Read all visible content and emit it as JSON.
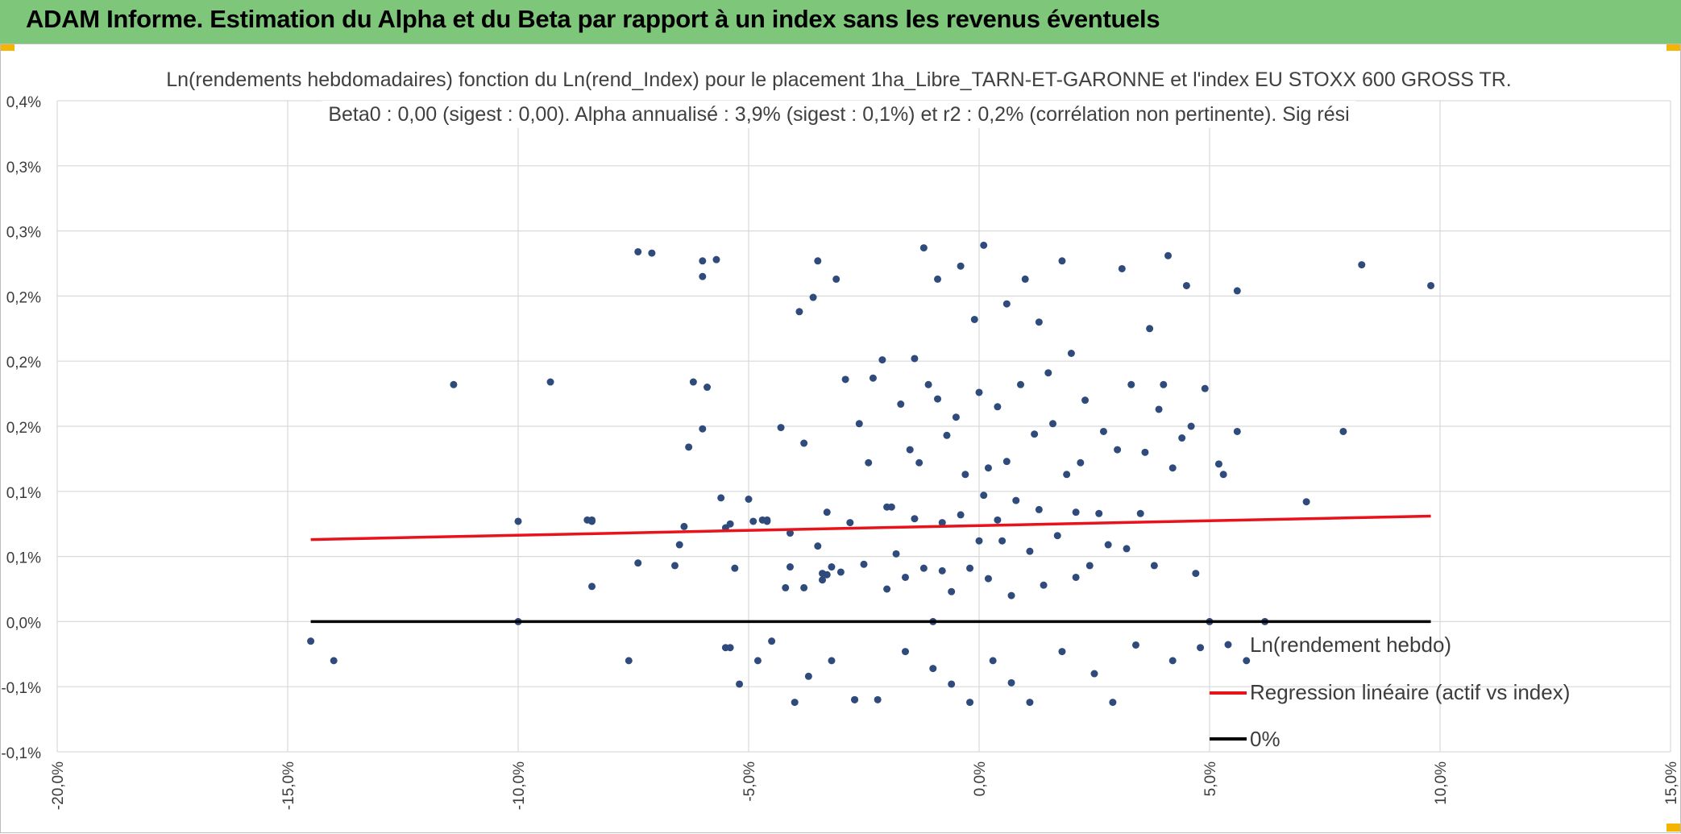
{
  "header": {
    "title": "ADAM Informe. Estimation du Alpha et du Beta par rapport à un index sans les revenus éventuels"
  },
  "colors": {
    "banner": "#7dc67a",
    "points": "#2f4b7c",
    "regression": "#e8121a",
    "zero_line": "#000000",
    "grid": "#d9d9d9"
  },
  "chart_data": {
    "type": "scatter",
    "title_line1": "Ln(rendements hebdomadaires) fonction du Ln(rend_Index) pour le placement 1ha_Libre_TARN-ET-GARONNE et l'index EU STOXX 600 GROSS TR.",
    "title_line2": "Beta0 : 0,00 (sigest : 0,00). Alpha annualisé : 3,9% (sigest : 0,1%) et r2 : 0,2% (corrélation non pertinente). Sig rési",
    "xlim": [
      -0.2,
      0.15
    ],
    "ylim": [
      -0.001,
      0.004
    ],
    "x_ticks": [
      -0.2,
      -0.15,
      -0.1,
      -0.05,
      0.0,
      0.05,
      0.1,
      0.15
    ],
    "x_tick_labels": [
      "-20,0%",
      "-15,0%",
      "-10,0%",
      "-5,0%",
      "0,0%",
      "5,0%",
      "10,0%",
      "15,0%"
    ],
    "y_ticks": [
      -0.001,
      -0.0005,
      0.0,
      0.0005,
      0.001,
      0.0015,
      0.002,
      0.0025,
      0.003,
      0.0035,
      0.004
    ],
    "y_tick_labels": [
      "-0,1%",
      "-0,1%",
      "0,0%",
      "0,1%",
      "0,1%",
      "0,2%",
      "0,2%",
      "0,2%",
      "0,3%",
      "0,3%",
      "0,4%"
    ],
    "regression": {
      "x": [
        -0.145,
        0.098
      ],
      "y": [
        0.00063,
        0.00081
      ]
    },
    "zero_line": {
      "x": [
        -0.145,
        0.098
      ],
      "y": [
        0,
        0
      ]
    },
    "legend": [
      {
        "label": "Ln(rendement hebdo)",
        "kind": "marker"
      },
      {
        "label": "Regression linéaire (actif vs index)",
        "kind": "line-red"
      },
      {
        "label": "0%",
        "kind": "line-black"
      }
    ],
    "series_name": "Ln(rendement hebdo)",
    "points": [
      [
        -0.145,
        -0.00015
      ],
      [
        -0.14,
        -0.0003
      ],
      [
        -0.114,
        0.00182
      ],
      [
        -0.1,
        0.00077
      ],
      [
        -0.1,
        0.0
      ],
      [
        -0.093,
        0.00184
      ],
      [
        -0.085,
        0.00078
      ],
      [
        -0.084,
        0.00077
      ],
      [
        -0.084,
        0.00078
      ],
      [
        -0.084,
        0.00027
      ],
      [
        -0.076,
        -0.0003
      ],
      [
        -0.074,
        0.00284
      ],
      [
        -0.074,
        0.00045
      ],
      [
        -0.071,
        0.00283
      ],
      [
        -0.066,
        0.00043
      ],
      [
        -0.065,
        0.00059
      ],
      [
        -0.064,
        0.00073
      ],
      [
        -0.063,
        0.00134
      ],
      [
        -0.062,
        0.00184
      ],
      [
        -0.06,
        0.00277
      ],
      [
        -0.06,
        0.00265
      ],
      [
        -0.06,
        0.00148
      ],
      [
        -0.059,
        0.0018
      ],
      [
        -0.057,
        0.00278
      ],
      [
        -0.056,
        0.00095
      ],
      [
        -0.055,
        0.00072
      ],
      [
        -0.055,
        -0.0002
      ],
      [
        -0.054,
        0.00075
      ],
      [
        -0.054,
        -0.0002
      ],
      [
        -0.053,
        0.00041
      ],
      [
        -0.052,
        -0.00048
      ],
      [
        -0.05,
        0.00094
      ],
      [
        -0.049,
        0.00077
      ],
      [
        -0.048,
        -0.0003
      ],
      [
        -0.047,
        0.00078
      ],
      [
        -0.046,
        0.00078
      ],
      [
        -0.046,
        0.00077
      ],
      [
        -0.045,
        -0.00015
      ],
      [
        -0.043,
        0.00149
      ],
      [
        -0.042,
        0.00026
      ],
      [
        -0.041,
        0.00042
      ],
      [
        -0.041,
        0.00068
      ],
      [
        -0.04,
        -0.00062
      ],
      [
        -0.039,
        0.00238
      ],
      [
        -0.038,
        0.00137
      ],
      [
        -0.038,
        0.00026
      ],
      [
        -0.037,
        -0.00042
      ],
      [
        -0.036,
        0.00249
      ],
      [
        -0.035,
        0.00058
      ],
      [
        -0.035,
        0.00277
      ],
      [
        -0.034,
        0.00037
      ],
      [
        -0.034,
        0.00032
      ],
      [
        -0.033,
        0.00036
      ],
      [
        -0.033,
        0.00084
      ],
      [
        -0.032,
        0.00042
      ],
      [
        -0.032,
        -0.0003
      ],
      [
        -0.031,
        0.00263
      ],
      [
        -0.03,
        0.00038
      ],
      [
        -0.029,
        0.00186
      ],
      [
        -0.028,
        0.00076
      ],
      [
        -0.027,
        -0.0006
      ],
      [
        -0.027,
        -0.0006
      ],
      [
        -0.026,
        0.00152
      ],
      [
        -0.025,
        0.00044
      ],
      [
        -0.024,
        0.00122
      ],
      [
        -0.023,
        0.00187
      ],
      [
        -0.022,
        -0.0006
      ],
      [
        -0.021,
        0.00201
      ],
      [
        -0.02,
        0.00088
      ],
      [
        -0.02,
        0.00025
      ],
      [
        -0.019,
        0.00088
      ],
      [
        -0.018,
        0.00052
      ],
      [
        -0.017,
        0.00167
      ],
      [
        -0.016,
        0.00034
      ],
      [
        -0.016,
        -0.00023
      ],
      [
        -0.015,
        0.00132
      ],
      [
        -0.014,
        0.00079
      ],
      [
        -0.014,
        0.00202
      ],
      [
        -0.013,
        0.00122
      ],
      [
        -0.012,
        0.00287
      ],
      [
        -0.012,
        0.00041
      ],
      [
        -0.011,
        0.00182
      ],
      [
        -0.01,
        -0.00036
      ],
      [
        -0.01,
        0.0
      ],
      [
        -0.009,
        0.00263
      ],
      [
        -0.009,
        0.00171
      ],
      [
        -0.008,
        0.00076
      ],
      [
        -0.008,
        0.00039
      ],
      [
        -0.007,
        0.00143
      ],
      [
        -0.006,
        0.00023
      ],
      [
        -0.006,
        -0.00048
      ],
      [
        -0.005,
        0.00157
      ],
      [
        -0.004,
        0.00273
      ],
      [
        -0.004,
        0.00082
      ],
      [
        -0.003,
        0.00113
      ],
      [
        -0.002,
        0.00041
      ],
      [
        -0.002,
        -0.00062
      ],
      [
        -0.001,
        0.00232
      ],
      [
        0.0,
        0.00176
      ],
      [
        0.0,
        0.00062
      ],
      [
        0.001,
        0.00289
      ],
      [
        0.001,
        0.00097
      ],
      [
        0.002,
        0.00118
      ],
      [
        0.002,
        0.00033
      ],
      [
        0.003,
        -0.0003
      ],
      [
        0.004,
        0.00165
      ],
      [
        0.004,
        0.00078
      ],
      [
        0.005,
        0.00062
      ],
      [
        0.006,
        0.00244
      ],
      [
        0.006,
        0.00123
      ],
      [
        0.007,
        -0.00047
      ],
      [
        0.007,
        0.0002
      ],
      [
        0.008,
        0.00093
      ],
      [
        0.009,
        0.00182
      ],
      [
        0.01,
        0.00263
      ],
      [
        0.011,
        0.00054
      ],
      [
        0.011,
        -0.00062
      ],
      [
        0.012,
        0.00144
      ],
      [
        0.013,
        0.0023
      ],
      [
        0.013,
        0.00086
      ],
      [
        0.014,
        0.00028
      ],
      [
        0.015,
        0.00191
      ],
      [
        0.016,
        0.00152
      ],
      [
        0.017,
        0.00066
      ],
      [
        0.018,
        0.00277
      ],
      [
        0.018,
        -0.00023
      ],
      [
        0.019,
        0.00113
      ],
      [
        0.02,
        0.00206
      ],
      [
        0.021,
        0.00084
      ],
      [
        0.021,
        0.00034
      ],
      [
        0.022,
        0.00122
      ],
      [
        0.023,
        0.0017
      ],
      [
        0.024,
        0.00043
      ],
      [
        0.025,
        -0.0004
      ],
      [
        0.026,
        0.00083
      ],
      [
        0.027,
        0.00146
      ],
      [
        0.028,
        0.00059
      ],
      [
        0.029,
        -0.00062
      ],
      [
        0.03,
        0.00132
      ],
      [
        0.031,
        0.00271
      ],
      [
        0.032,
        0.00056
      ],
      [
        0.033,
        0.00182
      ],
      [
        0.034,
        -0.00018
      ],
      [
        0.035,
        0.00083
      ],
      [
        0.036,
        0.0013
      ],
      [
        0.037,
        0.00225
      ],
      [
        0.038,
        0.00043
      ],
      [
        0.039,
        0.00163
      ],
      [
        0.04,
        0.00182
      ],
      [
        0.041,
        0.00281
      ],
      [
        0.042,
        0.00118
      ],
      [
        0.042,
        -0.0003
      ],
      [
        0.044,
        0.00141
      ],
      [
        0.045,
        0.00258
      ],
      [
        0.046,
        0.0015
      ],
      [
        0.047,
        0.00037
      ],
      [
        0.048,
        -0.0002
      ],
      [
        0.049,
        0.00179
      ],
      [
        0.05,
        0.0
      ],
      [
        0.052,
        0.00121
      ],
      [
        0.053,
        0.00113
      ],
      [
        0.056,
        0.00146
      ],
      [
        0.056,
        0.00254
      ],
      [
        0.058,
        -0.0003
      ],
      [
        0.062,
        0.0
      ],
      [
        0.071,
        0.00092
      ],
      [
        0.079,
        0.00146
      ],
      [
        0.083,
        0.00274
      ],
      [
        0.098,
        0.00258
      ]
    ]
  }
}
